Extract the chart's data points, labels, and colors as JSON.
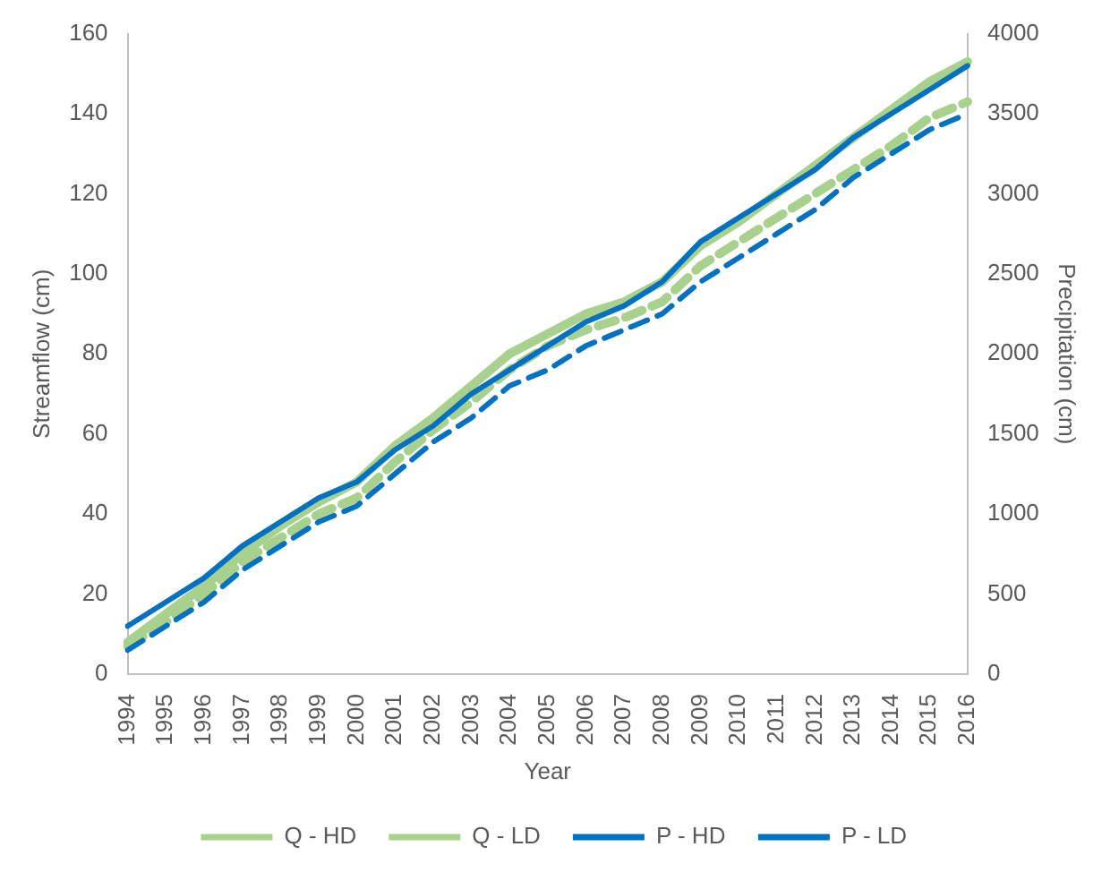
{
  "chart_data": {
    "type": "line",
    "xlabel": "Year",
    "ylabel": "Streamflow (cm)",
    "y2label": "Precipitation (cm)",
    "categories": [
      "1994",
      "1995",
      "1996",
      "1997",
      "1998",
      "1999",
      "2000",
      "2001",
      "2002",
      "2003",
      "2004",
      "2005",
      "2006",
      "2007",
      "2008",
      "2009",
      "2010",
      "2011",
      "2012",
      "2013",
      "2014",
      "2015",
      "2016"
    ],
    "series": [
      {
        "name": "Q - HD",
        "color": "#a9d18e",
        "line_style": "solid",
        "values": [
          8,
          15,
          22,
          30,
          37,
          43,
          48,
          57,
          64,
          72,
          80,
          85,
          90,
          93,
          98,
          107,
          113,
          120,
          127,
          134,
          141,
          148,
          153
        ]
      },
      {
        "name": "Q - LD",
        "color": "#a9d18e",
        "line_style": "dashed",
        "values": [
          7,
          13,
          20,
          28,
          34,
          40,
          44,
          53,
          61,
          68,
          76,
          82,
          86,
          89,
          93,
          102,
          108,
          114,
          120,
          126,
          132,
          139,
          143
        ]
      },
      {
        "name": "P - HD",
        "color": "#0070c0",
        "line_style": "solid",
        "axis": "y2",
        "values": [
          300,
          450,
          600,
          800,
          950,
          1100,
          1200,
          1400,
          1550,
          1750,
          1900,
          2050,
          2200,
          2300,
          2450,
          2700,
          2850,
          3000,
          3150,
          3350,
          3500,
          3650,
          3800
        ]
      },
      {
        "name": "P - LD",
        "color": "#0070c0",
        "line_style": "dashed",
        "axis": "y2",
        "values": [
          150,
          300,
          450,
          650,
          800,
          950,
          1050,
          1250,
          1450,
          1600,
          1800,
          1900,
          2050,
          2150,
          2250,
          2450,
          2600,
          2750,
          2900,
          3100,
          3250,
          3400,
          3500
        ]
      }
    ],
    "ylim": [
      0,
      160
    ],
    "yticks": [
      0,
      20,
      40,
      60,
      80,
      100,
      120,
      140,
      160
    ],
    "y2lim": [
      0,
      4000
    ],
    "y2ticks": [
      0,
      500,
      1000,
      1500,
      2000,
      2500,
      3000,
      3500,
      4000
    ],
    "grid": false,
    "legend": "bottom",
    "marker": "none"
  }
}
